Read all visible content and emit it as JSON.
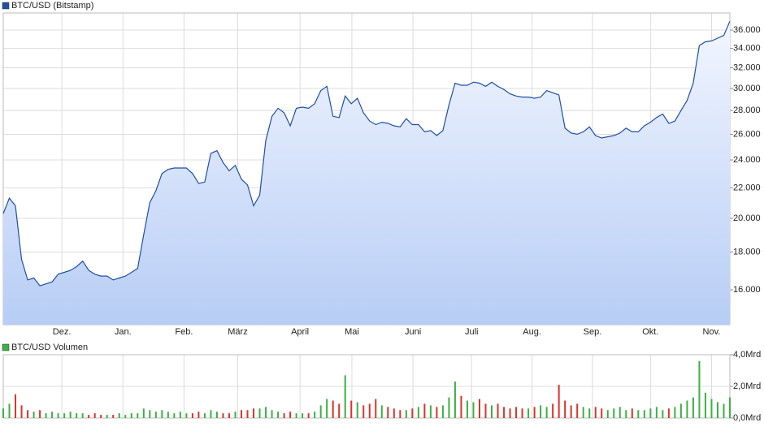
{
  "chart_data": [
    {
      "type": "line",
      "log_scale": true,
      "grid": true,
      "legend": "top-left",
      "series": [
        {
          "name": "BTC/USD (Bitstamp)",
          "color": "#1e4fa8",
          "values": [
            20300,
            21300,
            20800,
            17600,
            16500,
            16600,
            16200,
            16300,
            16400,
            16800,
            16900,
            17000,
            17200,
            17500,
            17000,
            16800,
            16700,
            16700,
            16500,
            16600,
            16700,
            16900,
            17100,
            19000,
            21000,
            21800,
            23000,
            23300,
            23400,
            23400,
            23400,
            23000,
            22300,
            22400,
            24500,
            24700,
            23800,
            23200,
            23600,
            22600,
            22200,
            20800,
            21500,
            25500,
            27500,
            28200,
            27800,
            26700,
            28200,
            28300,
            28200,
            28600,
            29800,
            30200,
            27500,
            27400,
            29300,
            28600,
            29100,
            27800,
            27100,
            26800,
            27000,
            26900,
            26700,
            26600,
            27300,
            26800,
            26800,
            26200,
            26300,
            25900,
            26300,
            28500,
            30500,
            30300,
            30300,
            30600,
            30500,
            30200,
            30600,
            30200,
            29900,
            29500,
            29300,
            29200,
            29200,
            29100,
            29200,
            29800,
            29600,
            29400,
            26500,
            26100,
            26000,
            26200,
            26600,
            25900,
            25700,
            25800,
            25900,
            26100,
            26500,
            26200,
            26200,
            26700,
            27000,
            27400,
            27700,
            26900,
            27100,
            28000,
            28900,
            30500,
            34300,
            34700,
            34800,
            35100,
            35400,
            37000
          ]
        }
      ],
      "xlim": [
        0,
        119
      ],
      "xticks": [
        {
          "value": 9.6,
          "label": "Dez."
        },
        {
          "value": 19.6,
          "label": "Jan."
        },
        {
          "value": 29.6,
          "label": "Feb."
        },
        {
          "value": 38.4,
          "label": "März"
        },
        {
          "value": 48.6,
          "label": "April"
        },
        {
          "value": 57.1,
          "label": "Mai"
        },
        {
          "value": 67.1,
          "label": "Juni"
        },
        {
          "value": 76.7,
          "label": "Juli"
        },
        {
          "value": 86.6,
          "label": "Aug."
        },
        {
          "value": 96.5,
          "label": "Sep."
        },
        {
          "value": 106,
          "label": "Okt."
        },
        {
          "value": 116,
          "label": "Nov."
        }
      ],
      "ylim": [
        14350,
        37970
      ],
      "yticks": [
        {
          "value": 16000,
          "label": "16.000"
        },
        {
          "value": 18000,
          "label": "18.000"
        },
        {
          "value": 20000,
          "label": "20.000"
        },
        {
          "value": 22000,
          "label": "22.000"
        },
        {
          "value": 24000,
          "label": "24.000"
        },
        {
          "value": 26000,
          "label": "26.000"
        },
        {
          "value": 28000,
          "label": "28.000"
        },
        {
          "value": 30000,
          "label": "30.000"
        },
        {
          "value": 32000,
          "label": "32.000"
        },
        {
          "value": 34000,
          "label": "34.000"
        },
        {
          "value": 36000,
          "label": "36.000"
        }
      ]
    },
    {
      "type": "bar",
      "grid": true,
      "legend": "top-left",
      "down_color": "#d9342b",
      "series": [
        {
          "name": "BTC/USD Volumen",
          "color": "#3cb043",
          "values": [
            0.6,
            0.9,
            1.5,
            0.8,
            0.5,
            0.4,
            0.5,
            0.3,
            0.4,
            0.3,
            0.3,
            0.4,
            0.3,
            0.3,
            0.2,
            0.3,
            0.2,
            0.2,
            0.2,
            0.3,
            0.2,
            0.3,
            0.3,
            0.6,
            0.5,
            0.4,
            0.5,
            0.4,
            0.3,
            0.4,
            0.3,
            0.3,
            0.4,
            0.3,
            0.5,
            0.4,
            0.3,
            0.3,
            0.4,
            0.5,
            0.5,
            0.6,
            0.6,
            0.7,
            0.5,
            0.4,
            0.3,
            0.4,
            0.3,
            0.3,
            0.3,
            0.4,
            0.8,
            1.2,
            1.1,
            0.9,
            2.7,
            1.1,
            1.0,
            0.8,
            0.9,
            1.2,
            0.8,
            0.7,
            0.6,
            0.5,
            0.5,
            0.6,
            0.7,
            0.9,
            0.8,
            0.7,
            0.8,
            1.3,
            2.3,
            1.4,
            1.1,
            1.0,
            1.2,
            0.9,
            0.8,
            0.9,
            0.7,
            0.6,
            0.7,
            0.6,
            0.6,
            0.7,
            0.8,
            0.7,
            0.9,
            2.1,
            1.1,
            0.8,
            0.9,
            0.7,
            0.6,
            0.7,
            0.6,
            0.5,
            0.6,
            0.7,
            0.5,
            0.6,
            0.5,
            0.5,
            0.6,
            0.7,
            0.5,
            0.6,
            0.7,
            0.9,
            1.1,
            1.3,
            3.6,
            1.6,
            1.2,
            1.0,
            0.9,
            1.3
          ]
        }
      ],
      "ylim": [
        0,
        4
      ],
      "yticks": [
        {
          "value": 0,
          "label": "0,0Mrd"
        },
        {
          "value": 2,
          "label": "2,0Mrd"
        },
        {
          "value": 4,
          "label": "4,0Mrd"
        }
      ]
    }
  ]
}
